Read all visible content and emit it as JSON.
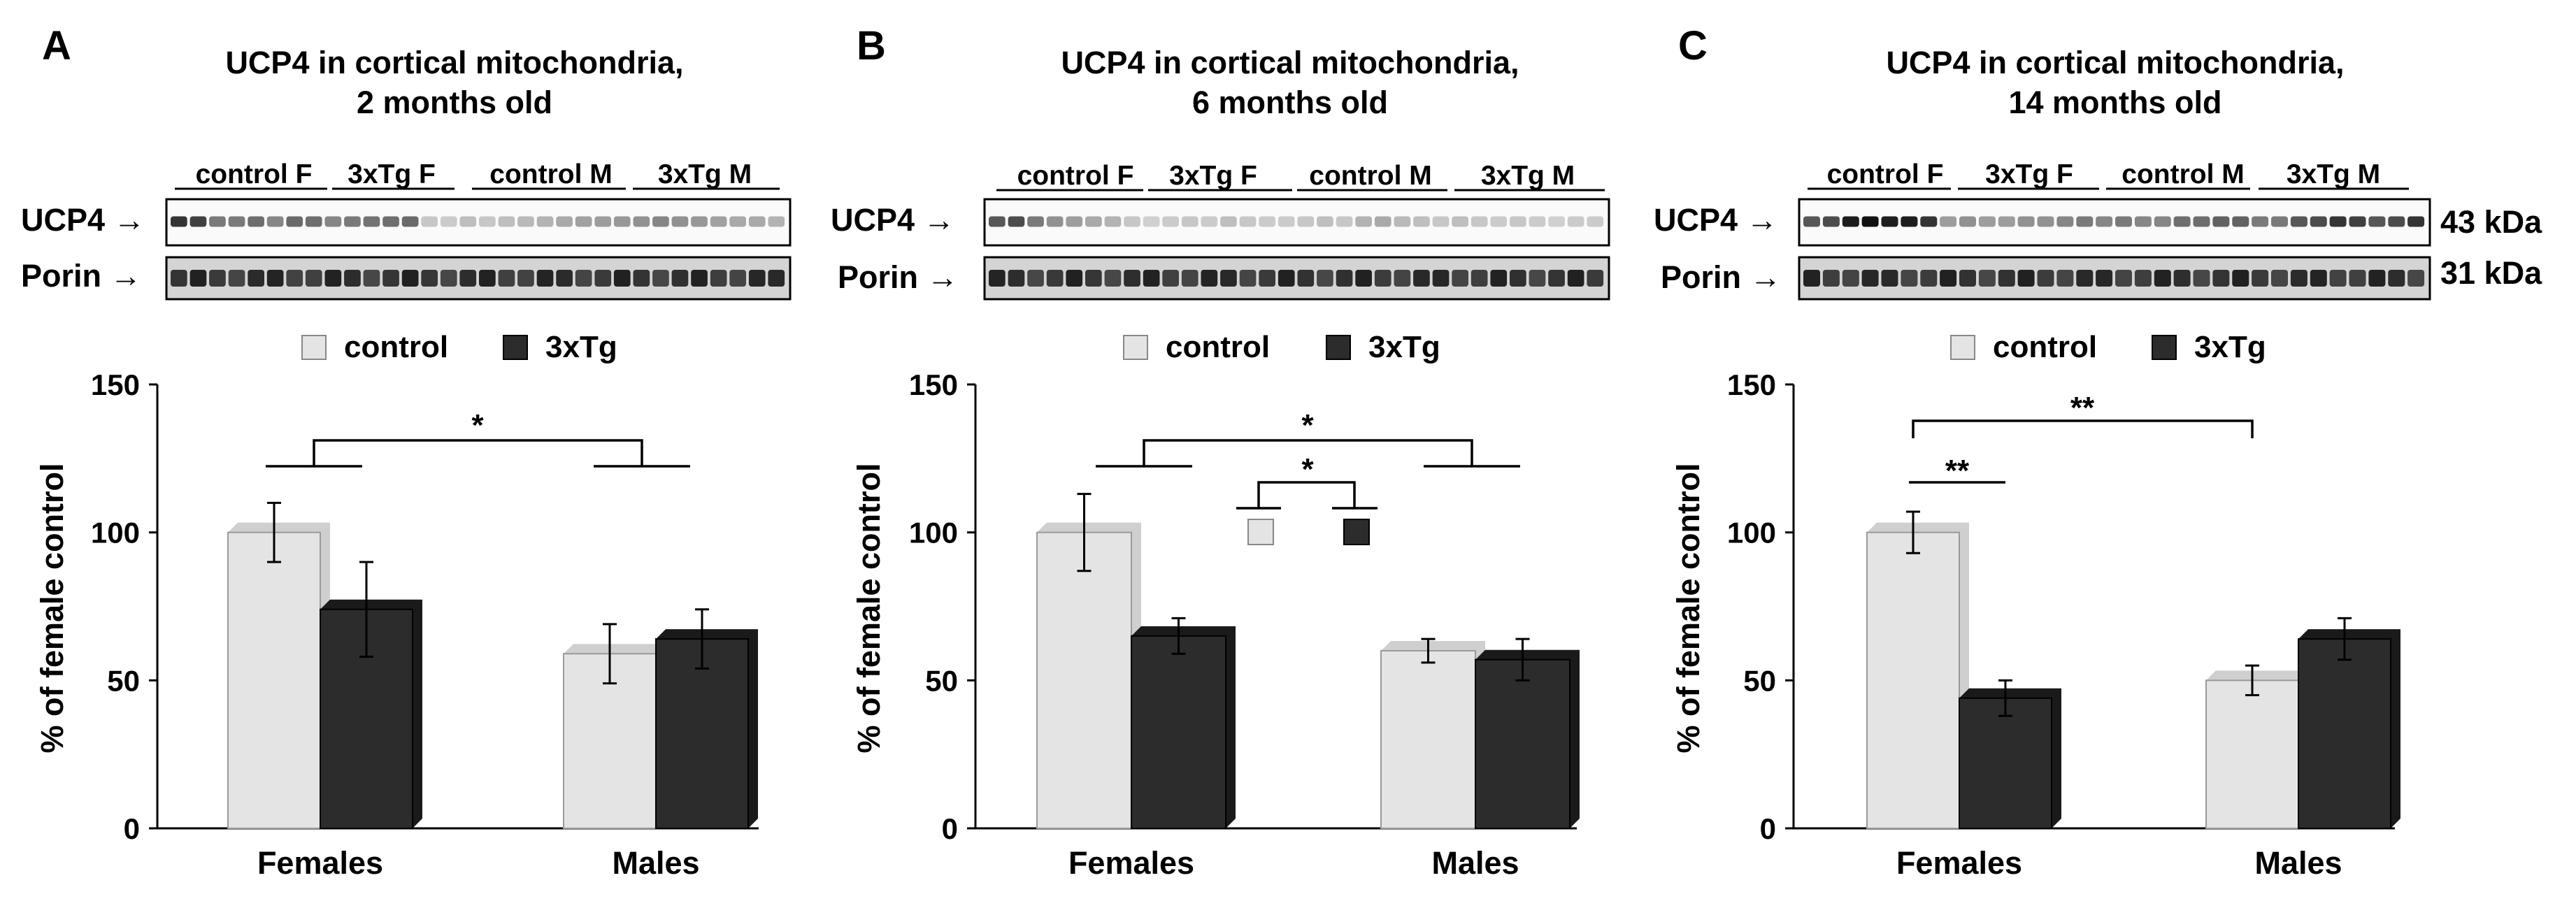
{
  "figure": {
    "legend": {
      "control_label": "control",
      "tg_label": "3xTg"
    },
    "series_colors": {
      "control": "#e4e4e4",
      "tg": "#2c2c2c"
    },
    "blot_row_labels": [
      "UCP4 →",
      "Porin →"
    ],
    "molecular_weights": [
      "43 kDa",
      "31 kDa"
    ],
    "lane_group_labels": [
      "control F",
      "3xTg F",
      "control M",
      "3xTg M"
    ]
  },
  "panels": [
    {
      "letter": "A",
      "title_line1": "UCP4 in cortical mitochondria,",
      "title_line2": "2 months old"
    },
    {
      "letter": "B",
      "title_line1": "UCP4 in cortical mitochondria,",
      "title_line2": "6 months old"
    },
    {
      "letter": "C",
      "title_line1": "UCP4 in cortical mitochondria,",
      "title_line2": "14 months old"
    }
  ],
  "chart_data": [
    {
      "type": "bar",
      "title": "UCP4 in cortical mitochondria, 2 months old",
      "categories": [
        "Females",
        "Males"
      ],
      "series": [
        {
          "name": "control",
          "values": [
            100,
            59
          ],
          "errors": [
            10,
            10
          ]
        },
        {
          "name": "3xTg",
          "values": [
            74,
            64
          ],
          "errors": [
            16,
            10
          ]
        }
      ],
      "ylabel": "% of female control",
      "ylim": [
        0,
        150
      ],
      "yticks": [
        0,
        50,
        100,
        150
      ],
      "legend": "top",
      "significance": [
        {
          "label": "*",
          "compare": "Females vs Males"
        }
      ]
    },
    {
      "type": "bar",
      "title": "UCP4 in cortical mitochondria, 6 months old",
      "categories": [
        "Females",
        "Males"
      ],
      "series": [
        {
          "name": "control",
          "values": [
            100,
            60
          ],
          "errors": [
            13,
            4
          ]
        },
        {
          "name": "3xTg",
          "values": [
            65,
            57
          ],
          "errors": [
            6,
            7
          ]
        }
      ],
      "ylabel": "% of female control",
      "ylim": [
        0,
        150
      ],
      "yticks": [
        0,
        50,
        100,
        150
      ],
      "legend": "top",
      "significance": [
        {
          "label": "*",
          "compare": "Females vs Males"
        },
        {
          "label": "*",
          "compare": "control vs 3xTg"
        }
      ]
    },
    {
      "type": "bar",
      "title": "UCP4 in cortical mitochondria, 14 months old",
      "categories": [
        "Females",
        "Males"
      ],
      "series": [
        {
          "name": "control",
          "values": [
            100,
            50
          ],
          "errors": [
            7,
            5
          ]
        },
        {
          "name": "3xTg",
          "values": [
            44,
            64
          ],
          "errors": [
            6,
            7
          ]
        }
      ],
      "ylabel": "% of female control",
      "ylim": [
        0,
        150
      ],
      "yticks": [
        0,
        50,
        100,
        150
      ],
      "legend": "top",
      "significance": [
        {
          "label": "**",
          "compare": "Females control vs Females 3xTg"
        },
        {
          "label": "**",
          "compare": "Females control vs Males control"
        }
      ]
    }
  ],
  "blots": [
    {
      "ucp4": [
        0.85,
        0.8,
        0.55,
        0.55,
        0.6,
        0.5,
        0.62,
        0.6,
        0.5,
        0.55,
        0.58,
        0.6,
        0.62,
        0.22,
        0.2,
        0.25,
        0.22,
        0.25,
        0.28,
        0.3,
        0.35,
        0.38,
        0.4,
        0.42,
        0.45,
        0.5,
        0.45,
        0.42,
        0.38,
        0.35,
        0.35,
        0.3
      ]
    },
    {
      "ucp4": [
        0.7,
        0.75,
        0.55,
        0.45,
        0.4,
        0.35,
        0.3,
        0.22,
        0.18,
        0.2,
        0.22,
        0.2,
        0.25,
        0.22,
        0.2,
        0.2,
        0.22,
        0.25,
        0.22,
        0.3,
        0.35,
        0.28,
        0.25,
        0.22,
        0.25,
        0.22,
        0.2,
        0.22,
        0.2,
        0.18,
        0.2,
        0.2
      ]
    },
    {
      "ucp4": [
        0.7,
        0.75,
        0.95,
        1.0,
        0.95,
        0.95,
        0.85,
        0.4,
        0.45,
        0.4,
        0.4,
        0.45,
        0.45,
        0.5,
        0.55,
        0.5,
        0.55,
        0.5,
        0.5,
        0.6,
        0.6,
        0.65,
        0.65,
        0.55,
        0.55,
        0.7,
        0.75,
        0.85,
        0.8,
        0.7,
        0.75,
        0.85
      ]
    }
  ]
}
